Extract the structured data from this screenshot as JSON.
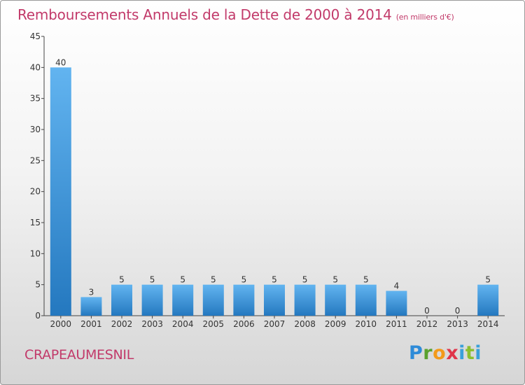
{
  "header": {
    "title": "Remboursements Annuels de la Dette de 2000 à 2014",
    "unit": "(en milliers d'€)"
  },
  "footer": {
    "commune": "CRAPEAUMESNIL",
    "logo_text": "Proxiti"
  },
  "colors": {
    "title": "#c23a6a",
    "bar_light": "#62b4f0",
    "bar_dark": "#2478bf",
    "axis": "#333333"
  },
  "chart_data": {
    "type": "bar",
    "title": "Remboursements Annuels de la Dette de 2000 à 2014",
    "xlabel": "",
    "ylabel": "",
    "ylim": [
      0,
      45
    ],
    "yticks": [
      0,
      5,
      10,
      15,
      20,
      25,
      30,
      35,
      40,
      45
    ],
    "categories": [
      "2000",
      "2001",
      "2002",
      "2003",
      "2004",
      "2005",
      "2006",
      "2007",
      "2008",
      "2009",
      "2010",
      "2011",
      "2012",
      "2013",
      "2014"
    ],
    "values": [
      40,
      3,
      5,
      5,
      5,
      5,
      5,
      5,
      5,
      5,
      5,
      4,
      0,
      0,
      5
    ],
    "grid": false
  }
}
